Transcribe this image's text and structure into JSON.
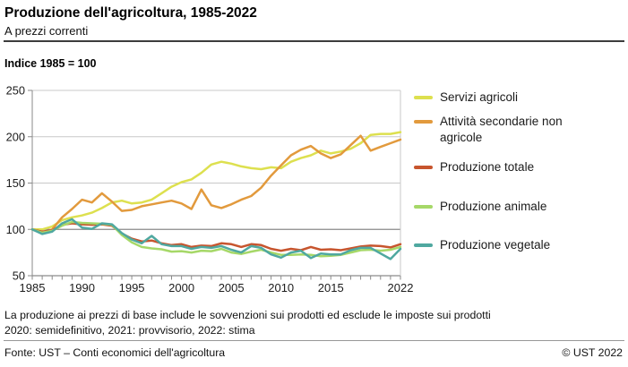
{
  "header": {
    "title": "Produzione dell'agricoltura, 1985-2022",
    "subtitle": "A prezzi correnti"
  },
  "index_note": "Indice 1985 = 100",
  "chart_data": {
    "type": "line",
    "title": "Produzione dell'agricoltura, 1985-2022",
    "subtitle": "A prezzi correnti",
    "ylabel": "Indice 1985 = 100",
    "ylim": [
      50,
      250
    ],
    "y_ticks": [
      50,
      100,
      150,
      200,
      250
    ],
    "x_tick_labels": [
      1985,
      1990,
      1995,
      2000,
      2005,
      2010,
      2015,
      2022
    ],
    "grid": true,
    "reference_line": 100,
    "legend_position": "right",
    "x": [
      1985,
      1986,
      1987,
      1988,
      1989,
      1990,
      1991,
      1992,
      1993,
      1994,
      1995,
      1996,
      1997,
      1998,
      1999,
      2000,
      2001,
      2002,
      2003,
      2004,
      2005,
      2006,
      2007,
      2008,
      2009,
      2010,
      2011,
      2012,
      2013,
      2014,
      2015,
      2016,
      2017,
      2018,
      2019,
      2020,
      2021,
      2022
    ],
    "series": [
      {
        "name": "Servizi agricoli",
        "color": "#dde04f",
        "values": [
          100,
          100,
          103,
          110,
          113,
          115,
          118,
          123,
          129,
          131,
          128,
          129,
          132,
          139,
          146,
          151,
          154,
          161,
          170,
          173,
          171,
          168,
          166,
          165,
          167,
          166,
          173,
          177,
          180,
          185,
          182,
          184,
          187,
          193,
          202,
          203,
          203,
          205
        ]
      },
      {
        "name": "Attività secondarie non agricole",
        "color": "#e29a3d",
        "values": [
          100,
          96,
          100,
          113,
          122,
          132,
          129,
          139,
          130,
          120,
          121,
          125,
          127,
          129,
          131,
          128,
          122,
          143,
          126,
          123,
          127,
          132,
          136,
          145,
          158,
          169,
          180,
          186,
          190,
          182,
          177,
          181,
          191,
          201,
          185,
          189,
          193,
          197
        ]
      },
      {
        "name": "Produzione totale",
        "color": "#c7552e",
        "values": [
          100,
          97.5,
          99,
          105,
          106.5,
          105.5,
          105,
          105.5,
          104,
          95.5,
          90,
          87,
          88,
          85,
          83,
          84,
          81,
          82.5,
          82,
          85,
          84,
          81,
          84,
          83,
          79,
          77,
          79,
          77.5,
          81,
          78,
          78.5,
          77.5,
          79.5,
          81.5,
          82.5,
          82,
          80.5,
          84
        ]
      },
      {
        "name": "Produzione animale",
        "color": "#a6d868",
        "values": [
          100,
          96.5,
          98.5,
          104,
          108,
          107,
          106.5,
          106,
          105,
          94,
          86,
          81,
          79.5,
          78.5,
          76,
          76.5,
          75,
          77,
          76.5,
          79,
          75,
          73.5,
          76,
          78,
          75,
          72.5,
          72.5,
          73,
          72.5,
          71,
          71.5,
          72.5,
          75,
          77.5,
          78,
          77,
          78,
          81
        ]
      },
      {
        "name": "Produzione vegetale",
        "color": "#4fa8a0",
        "values": [
          100,
          95,
          97.5,
          106.5,
          111,
          102,
          100.5,
          106.5,
          105.5,
          96,
          89,
          85,
          93,
          84,
          82,
          82,
          79,
          81,
          80,
          82,
          78,
          75,
          82,
          80,
          73,
          69.5,
          75,
          77,
          69,
          74,
          73,
          73,
          77.5,
          80,
          80,
          74,
          68,
          79
        ]
      }
    ]
  },
  "footnotes": [
    "La produzione ai prezzi di base include le sovvenzioni sui prodotti ed esclude le imposte sui prodotti",
    "2020: semidefinitivo, 2021: provvisorio, 2022: stima"
  ],
  "footer": {
    "source": "Fonte: UST – Conti economici dell'agricoltura",
    "copyright": "© UST 2022"
  }
}
